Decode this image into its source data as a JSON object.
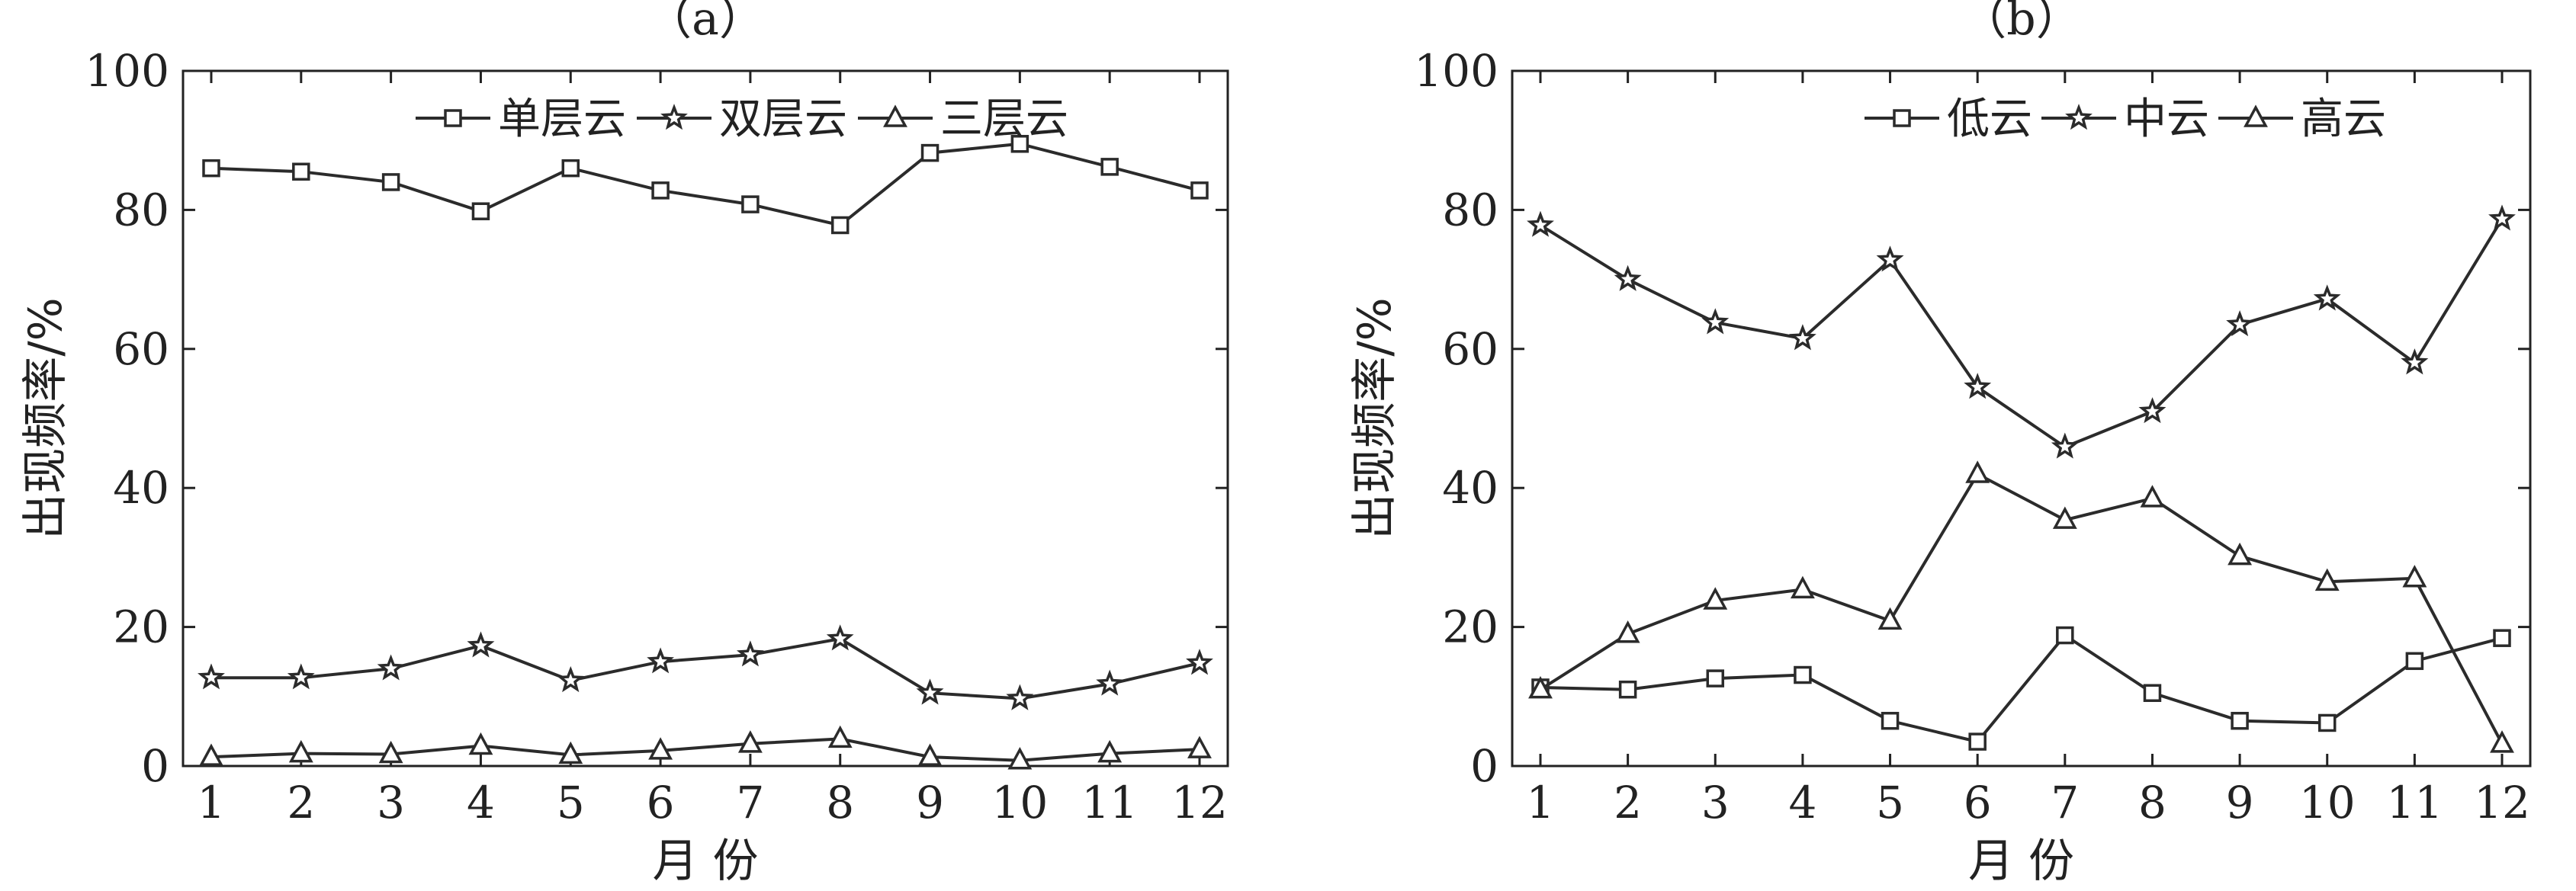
{
  "chart_data": [
    {
      "type": "line",
      "title": "（a）",
      "xlabel": "月  份",
      "ylabel": "出现频率/%",
      "x": [
        1,
        2,
        3,
        4,
        5,
        6,
        7,
        8,
        9,
        10,
        11,
        12
      ],
      "xticks": [
        "1",
        "2",
        "3",
        "4",
        "5",
        "6",
        "7",
        "8",
        "9",
        "10",
        "11",
        "12"
      ],
      "ylim": [
        0,
        100
      ],
      "yticks": [
        "0",
        "20",
        "40",
        "60",
        "80",
        "100"
      ],
      "legend_position": "top-right",
      "series": [
        {
          "name": "单层云",
          "marker": "square",
          "values": [
            86,
            85.5,
            84,
            79.8,
            86,
            82.8,
            80.8,
            77.8,
            88.2,
            89.5,
            86.2,
            82.8
          ]
        },
        {
          "name": "双层云",
          "marker": "star",
          "values": [
            12.7,
            12.7,
            14,
            17.3,
            12.3,
            15,
            16,
            18.3,
            10.5,
            9.7,
            11.8,
            14.8
          ]
        },
        {
          "name": "三层云",
          "marker": "triangle",
          "values": [
            1.3,
            1.8,
            1.7,
            2.9,
            1.6,
            2.2,
            3.2,
            3.9,
            1.3,
            0.8,
            1.8,
            2.4
          ]
        }
      ]
    },
    {
      "type": "line",
      "title": "（b）",
      "xlabel": "月  份",
      "ylabel": "出现频率/%",
      "x": [
        1,
        2,
        3,
        4,
        5,
        6,
        7,
        8,
        9,
        10,
        11,
        12
      ],
      "xticks": [
        "1",
        "2",
        "3",
        "4",
        "5",
        "6",
        "7",
        "8",
        "9",
        "10",
        "11",
        "12"
      ],
      "ylim": [
        0,
        100
      ],
      "yticks": [
        "0",
        "20",
        "40",
        "60",
        "80",
        "100"
      ],
      "legend_position": "top-right",
      "series": [
        {
          "name": "低云",
          "marker": "square",
          "values": [
            11.3,
            11,
            12.6,
            13.1,
            6.5,
            3.5,
            18.8,
            10.5,
            6.5,
            6.2,
            15.1,
            18.4
          ]
        },
        {
          "name": "中云",
          "marker": "star",
          "values": [
            77.8,
            70,
            63.8,
            61.5,
            72.8,
            54.5,
            45.9,
            51,
            63.5,
            67.2,
            58,
            78.7
          ]
        },
        {
          "name": "高云",
          "marker": "triangle",
          "values": [
            11,
            19,
            23.8,
            25.4,
            20.9,
            42,
            35.4,
            38.5,
            30.2,
            26.5,
            27,
            3.2
          ]
        }
      ]
    }
  ]
}
